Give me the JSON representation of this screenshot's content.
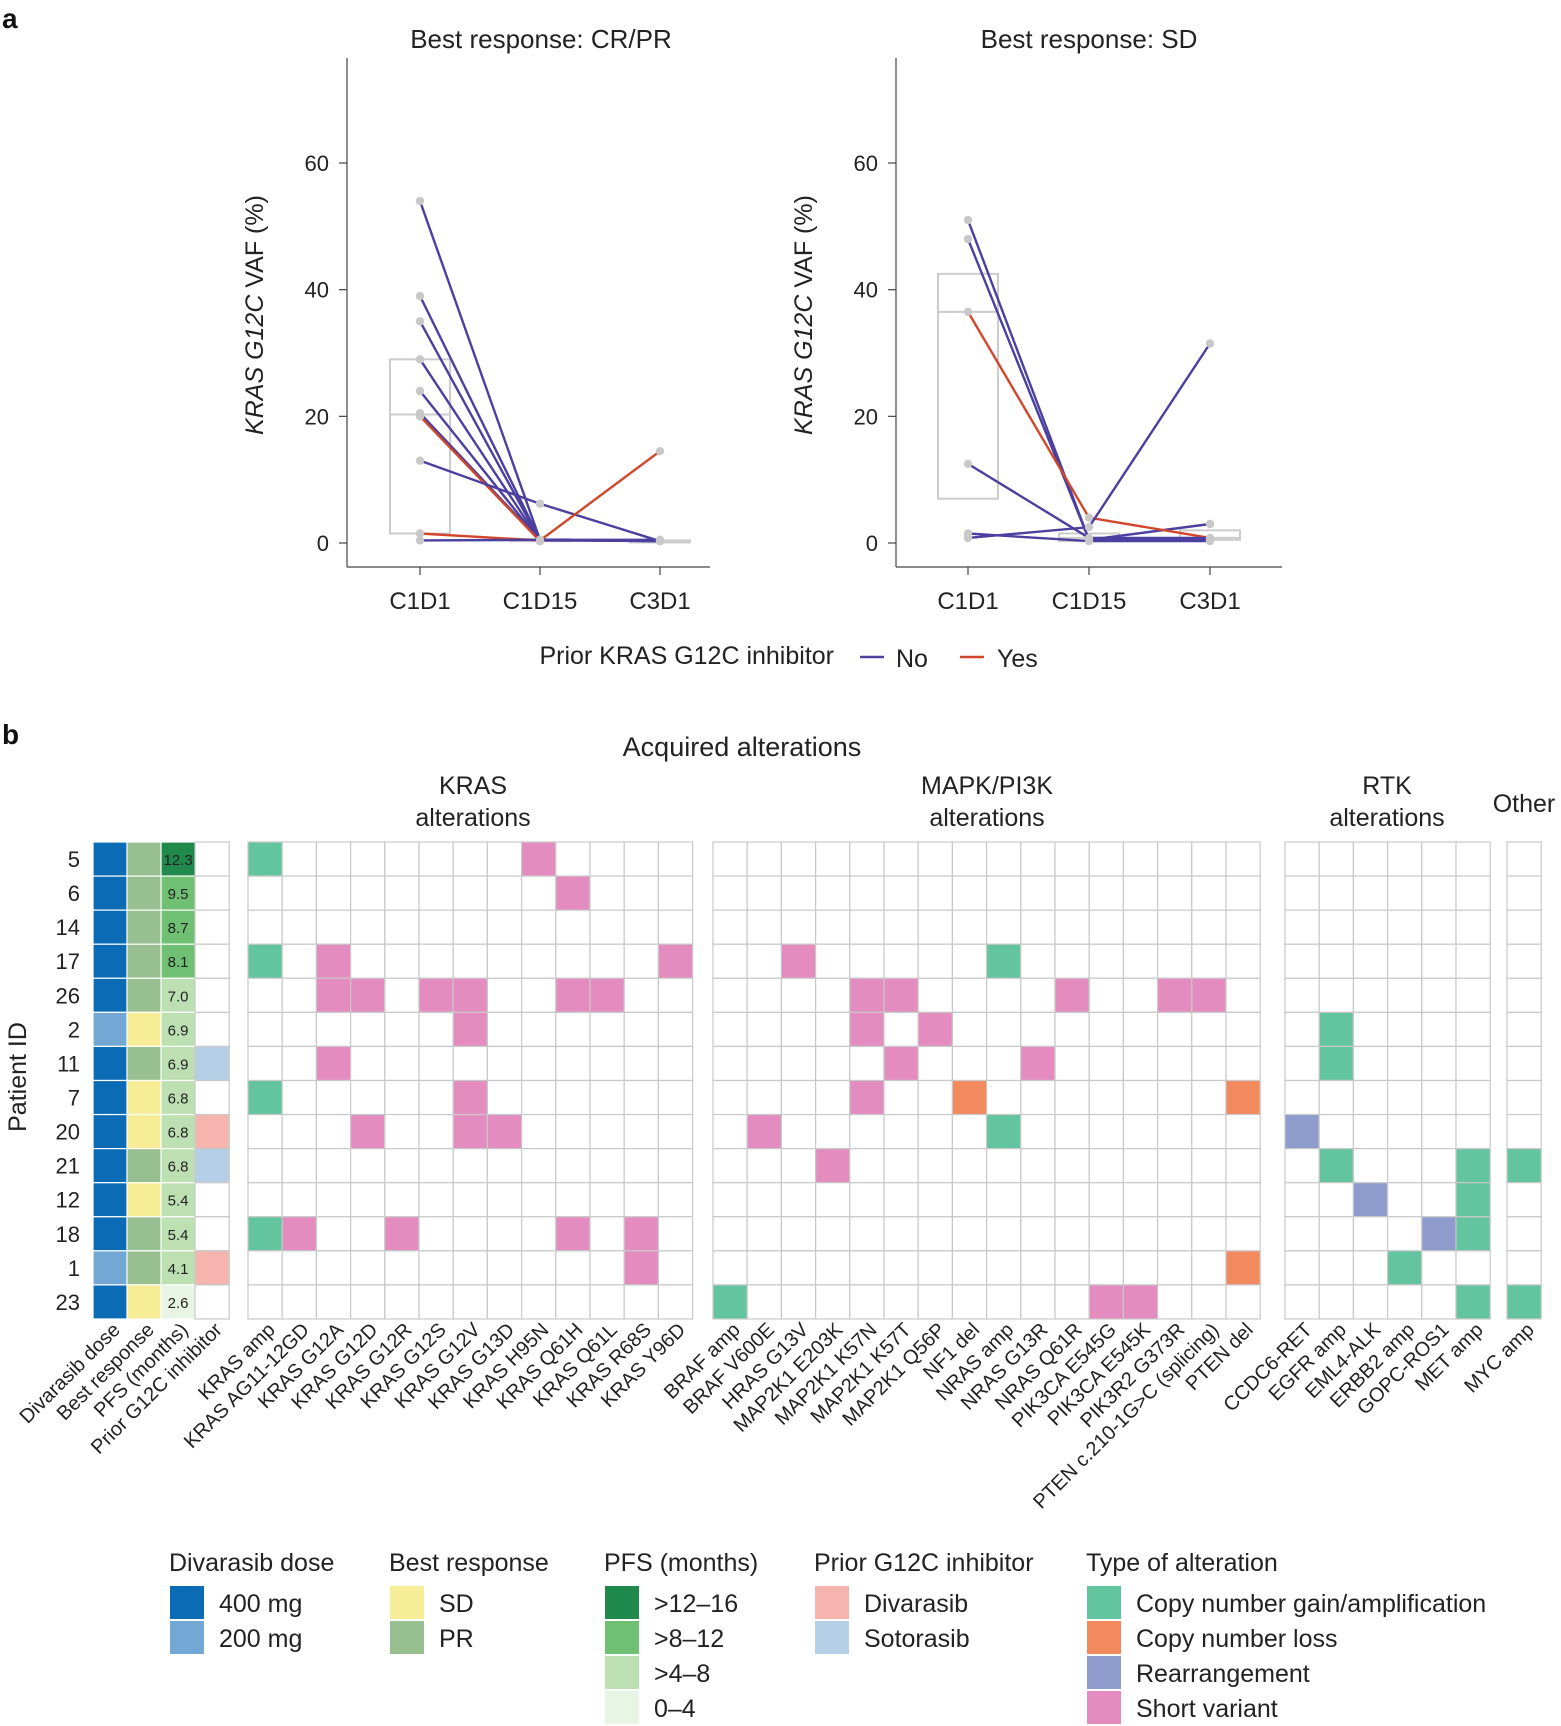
{
  "panel_labels": {
    "a": "a",
    "b": "b"
  },
  "colors": {
    "no": "#4b3fa0",
    "yes": "#d2472c",
    "point": "#c8c8c8",
    "box": "#cccccc",
    "grid": "#c8c8c8",
    "dose_400": "#0b6cb5",
    "dose_200": "#74a8d4",
    "resp_SD": "#f7ed97",
    "resp_PR": "#97bf8f",
    "pfs_12_16": "#1f8a4c",
    "pfs_8_12": "#6fc072",
    "pfs_4_8": "#bde0b2",
    "pfs_0_4": "#e9f5e4",
    "prior_D": "#f6b4ae",
    "prior_S": "#b4cfe6",
    "alt_C": "#63c4a0",
    "alt_L": "#f28a5e",
    "alt_R": "#8e9bcd",
    "alt_S": "#e48cc0"
  },
  "chart_data": [
    {
      "type": "line",
      "title": "Best response: CR/PR",
      "xlabel": "",
      "ylabel_italic": "KRAS G12C",
      "ylabel_rest": " VAF (%)",
      "categories": [
        "C1D1",
        "C1D15",
        "C3D1"
      ],
      "yticks": [
        0,
        20,
        40,
        60
      ],
      "ylim": [
        -4,
        76
      ],
      "series": [
        {
          "prior": "No",
          "values": [
            54,
            0.5,
            0.3
          ]
        },
        {
          "prior": "No",
          "values": [
            39,
            0.5,
            0.3
          ]
        },
        {
          "prior": "No",
          "values": [
            35,
            0.4,
            0.3
          ]
        },
        {
          "prior": "No",
          "values": [
            29,
            0.3,
            null
          ]
        },
        {
          "prior": "No",
          "values": [
            24,
            0.3,
            null
          ]
        },
        {
          "prior": "No",
          "values": [
            20.5,
            0.4,
            null
          ]
        },
        {
          "prior": "Yes",
          "values": [
            20,
            0.3,
            null
          ]
        },
        {
          "prior": "No",
          "values": [
            13,
            6.2,
            0.3
          ]
        },
        {
          "prior": "Yes",
          "values": [
            1.5,
            0.4,
            14.5
          ]
        },
        {
          "prior": "No",
          "values": [
            0.4,
            0.5,
            0.5
          ]
        }
      ],
      "boxes": [
        {
          "x": "C1D1",
          "q1": 1.5,
          "median": 20.3,
          "q3": 29
        },
        {
          "x": "C1D15",
          "q1": 0.3,
          "median": 0.4,
          "q3": 0.6
        },
        {
          "x": "C3D1",
          "q1": 0.2,
          "median": 0.3,
          "q3": 0.4
        }
      ]
    },
    {
      "type": "line",
      "title": "Best response: SD",
      "xlabel": "",
      "ylabel_italic": "KRAS G12C",
      "ylabel_rest": " VAF (%)",
      "categories": [
        "C1D1",
        "C1D15",
        "C3D1"
      ],
      "yticks": [
        0,
        20,
        40,
        60
      ],
      "ylim": [
        -4,
        76
      ],
      "series": [
        {
          "prior": "No",
          "values": [
            51,
            0.5,
            3
          ]
        },
        {
          "prior": "No",
          "values": [
            48,
            0.5,
            0.5
          ]
        },
        {
          "prior": "Yes",
          "values": [
            36.5,
            4,
            0.8
          ]
        },
        {
          "prior": "No",
          "values": [
            12.5,
            0.8,
            0.8
          ]
        },
        {
          "prior": "No",
          "values": [
            1.5,
            0.3,
            0.3
          ]
        },
        {
          "prior": "No",
          "values": [
            0.8,
            2.5,
            31.5
          ]
        }
      ],
      "boxes": [
        {
          "x": "C1D1",
          "q1": 7,
          "median": 36.5,
          "q3": 42.5
        },
        {
          "x": "C1D15",
          "q1": 0.3,
          "median": 0.8,
          "q3": 1.5
        },
        {
          "x": "C3D1",
          "q1": 0.5,
          "median": 0.8,
          "q3": 2
        }
      ]
    },
    {
      "type": "heatmap",
      "title": "Acquired alterations",
      "ylabel": "Patient ID",
      "patients": [
        "5",
        "6",
        "14",
        "17",
        "26",
        "2",
        "11",
        "7",
        "20",
        "21",
        "12",
        "18",
        "1",
        "23"
      ],
      "clinical_columns": [
        "Divarasib dose",
        "Best response",
        "PFS (months)",
        "Prior G12C inhibitor"
      ],
      "dose": [
        "400",
        "400",
        "400",
        "400",
        "400",
        "200",
        "400",
        "400",
        "400",
        "400",
        "400",
        "400",
        "200",
        "400"
      ],
      "response": [
        "PR",
        "PR",
        "PR",
        "PR",
        "PR",
        "SD",
        "PR",
        "SD",
        "SD",
        "PR",
        "SD",
        "PR",
        "PR",
        "SD"
      ],
      "pfs": [
        "12.3",
        "9.5",
        "8.7",
        "8.1",
        "7.0",
        "6.9",
        "6.9",
        "6.8",
        "6.8",
        "6.8",
        "5.4",
        "5.4",
        "4.1",
        "2.6"
      ],
      "prior": [
        "",
        "",
        "",
        "",
        "",
        "",
        "S",
        "",
        "D",
        "S",
        "",
        "",
        "D",
        ""
      ],
      "groups": [
        {
          "name": [
            "KRAS",
            "alterations"
          ],
          "genes": [
            "KRAS amp",
            "KRAS AG11-12GD",
            "KRAS G12A",
            "KRAS G12D",
            "KRAS G12R",
            "KRAS G12S",
            "KRAS G12V",
            "KRAS G13D",
            "KRAS H95N",
            "KRAS Q61H",
            "KRAS Q61L",
            "KRAS R68S",
            "KRAS Y96D"
          ],
          "cells": {
            "5": {
              "0": "C",
              "8": "S"
            },
            "6": {
              "9": "S"
            },
            "17": {
              "0": "C",
              "2": "S",
              "12": "S"
            },
            "26": {
              "2": "S",
              "3": "S",
              "5": "S",
              "6": "S",
              "9": "S",
              "10": "S"
            },
            "2": {
              "6": "S"
            },
            "11": {
              "2": "S"
            },
            "7": {
              "0": "C",
              "6": "S"
            },
            "20": {
              "3": "S",
              "6": "S",
              "7": "S"
            },
            "18": {
              "0": "C",
              "1": "S",
              "4": "S",
              "9": "S",
              "11": "S"
            },
            "1": {
              "11": "S"
            }
          }
        },
        {
          "name": [
            "MAPK/PI3K",
            "alterations"
          ],
          "genes": [
            "BRAF amp",
            "BRAF V600E",
            "HRAS G13V",
            "MAP2K1 E203K",
            "MAP2K1 K57N",
            "MAP2K1 K57T",
            "MAP2K1 Q56P",
            "NF1 del",
            "NRAS amp",
            "NRAS G13R",
            "NRAS Q61R",
            "PIK3CA E545G",
            "PIK3CA E545K",
            "PIK3R2 G373R",
            "PTEN c.210-1G>C (splicing)",
            "PTEN del"
          ],
          "cells": {
            "17": {
              "2": "S",
              "8": "C"
            },
            "26": {
              "4": "S",
              "5": "S",
              "10": "S",
              "13": "S",
              "14": "S"
            },
            "2": {
              "4": "S",
              "6": "S"
            },
            "11": {
              "5": "S",
              "9": "S"
            },
            "7": {
              "4": "S",
              "7": "L",
              "15": "L"
            },
            "20": {
              "1": "S",
              "8": "C"
            },
            "21": {
              "3": "S"
            },
            "1": {
              "15": "L"
            },
            "23": {
              "0": "C",
              "11": "S",
              "12": "S"
            }
          }
        },
        {
          "name": [
            "RTK",
            "alterations"
          ],
          "genes": [
            "CCDC6-RET",
            "EGFR amp",
            "EML4-ALK",
            "ERBB2 amp",
            "GOPC-ROS1",
            "MET amp"
          ],
          "cells": {
            "2": {
              "1": "C"
            },
            "11": {
              "1": "C"
            },
            "20": {
              "0": "R"
            },
            "21": {
              "1": "C",
              "5": "C"
            },
            "12": {
              "2": "R",
              "5": "C"
            },
            "18": {
              "4": "R",
              "5": "C"
            },
            "1": {
              "3": "C"
            },
            "23": {
              "5": "C"
            }
          }
        },
        {
          "name": [
            "Other"
          ],
          "genes": [
            "MYC amp"
          ],
          "cells": {
            "21": {
              "0": "C"
            },
            "23": {
              "0": "C"
            }
          }
        }
      ]
    }
  ],
  "line_legend": {
    "title": "Prior KRAS G12C inhibitor",
    "no": "No",
    "yes": "Yes"
  },
  "legends": [
    {
      "title": "Divarasib dose",
      "items": [
        {
          "label": "400 mg",
          "key": "dose_400"
        },
        {
          "label": "200 mg",
          "key": "dose_200"
        }
      ]
    },
    {
      "title": "Best response",
      "items": [
        {
          "label": "SD",
          "key": "resp_SD"
        },
        {
          "label": "PR",
          "key": "resp_PR"
        }
      ]
    },
    {
      "title": "PFS (months)",
      "items": [
        {
          "label": ">12–16",
          "key": "pfs_12_16"
        },
        {
          "label": ">8–12",
          "key": "pfs_8_12"
        },
        {
          "label": ">4–8",
          "key": "pfs_4_8"
        },
        {
          "label": "0–4",
          "key": "pfs_0_4"
        }
      ]
    },
    {
      "title": "Prior G12C inhibitor",
      "items": [
        {
          "label": "Divarasib",
          "key": "prior_D"
        },
        {
          "label": "Sotorasib",
          "key": "prior_S"
        }
      ]
    },
    {
      "title": "Type of alteration",
      "items": [
        {
          "label": "Copy number gain/amplification",
          "key": "alt_C"
        },
        {
          "label": "Copy number loss",
          "key": "alt_L"
        },
        {
          "label": "Rearrangement",
          "key": "alt_R"
        },
        {
          "label": "Short variant",
          "key": "alt_S"
        }
      ]
    }
  ]
}
